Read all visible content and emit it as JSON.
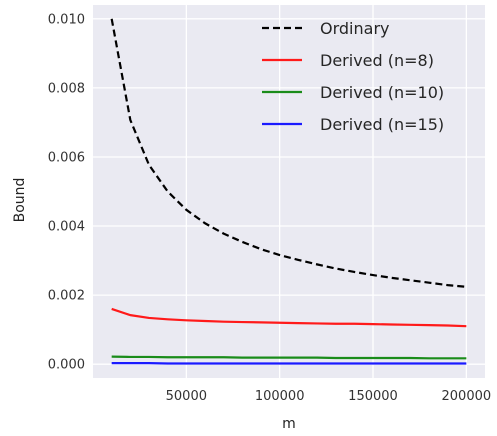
{
  "chart_data": {
    "type": "line",
    "title": "",
    "xlabel": "m",
    "ylabel": "Bound",
    "xlim": [
      0,
      210000
    ],
    "ylim": [
      -0.0004,
      0.0104
    ],
    "x_ticks": [
      50000,
      100000,
      150000,
      200000
    ],
    "x_tick_labels": [
      "50000",
      "100000",
      "150000",
      "200000"
    ],
    "y_ticks": [
      0.0,
      0.002,
      0.004,
      0.006,
      0.008,
      0.01
    ],
    "y_tick_labels": [
      "0.000",
      "0.002",
      "0.004",
      "0.006",
      "0.008",
      "0.010"
    ],
    "grid": true,
    "legend_position": "top-right",
    "x": [
      10000,
      20000,
      30000,
      40000,
      50000,
      60000,
      70000,
      80000,
      90000,
      100000,
      110000,
      120000,
      130000,
      140000,
      150000,
      160000,
      170000,
      180000,
      190000,
      200000
    ],
    "series": [
      {
        "name": "Ordinary",
        "color": "#000000",
        "dash": true,
        "values": [
          0.01,
          0.00707,
          0.00577,
          0.005,
          0.00447,
          0.00408,
          0.00378,
          0.00354,
          0.00333,
          0.00316,
          0.00302,
          0.00289,
          0.00277,
          0.00267,
          0.00258,
          0.0025,
          0.00243,
          0.00236,
          0.00229,
          0.00224
        ]
      },
      {
        "name": "Derived (n=8)",
        "color": "#ff1a1a",
        "dash": false,
        "values": [
          0.0016,
          0.00142,
          0.00134,
          0.0013,
          0.00127,
          0.00125,
          0.00123,
          0.00122,
          0.00121,
          0.0012,
          0.00119,
          0.00118,
          0.00117,
          0.00117,
          0.00116,
          0.00115,
          0.00114,
          0.00113,
          0.00112,
          0.0011
        ]
      },
      {
        "name": "Derived (n=10)",
        "color": "#1a8c1a",
        "dash": false,
        "values": [
          0.00022,
          0.00021,
          0.00021,
          0.0002,
          0.0002,
          0.0002,
          0.0002,
          0.00019,
          0.00019,
          0.00019,
          0.00019,
          0.00019,
          0.00018,
          0.00018,
          0.00018,
          0.00018,
          0.00018,
          0.00017,
          0.00017,
          0.00017
        ]
      },
      {
        "name": "Derived (n=15)",
        "color": "#1a1aff",
        "dash": false,
        "values": [
          3e-05,
          3e-05,
          3e-05,
          2e-05,
          2e-05,
          2e-05,
          2e-05,
          2e-05,
          2e-05,
          2e-05,
          2e-05,
          2e-05,
          2e-05,
          2e-05,
          2e-05,
          2e-05,
          2e-05,
          2e-05,
          2e-05,
          2e-05
        ]
      }
    ]
  }
}
